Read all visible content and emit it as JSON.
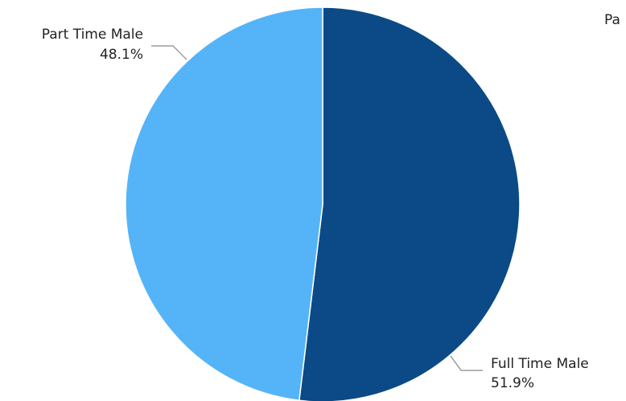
{
  "chart_data": {
    "type": "pie",
    "title": "",
    "slices": [
      {
        "label": "Full Time Male",
        "value": 51.9,
        "display": "51.9%",
        "color": "#0b4a86"
      },
      {
        "label": "Part Time Male",
        "value": 48.1,
        "display": "48.1%",
        "color": "#55b4f8"
      }
    ],
    "legend": {
      "position": "top-right",
      "clipped_text": "Pa"
    },
    "slice_border_color": "#ffffff"
  }
}
